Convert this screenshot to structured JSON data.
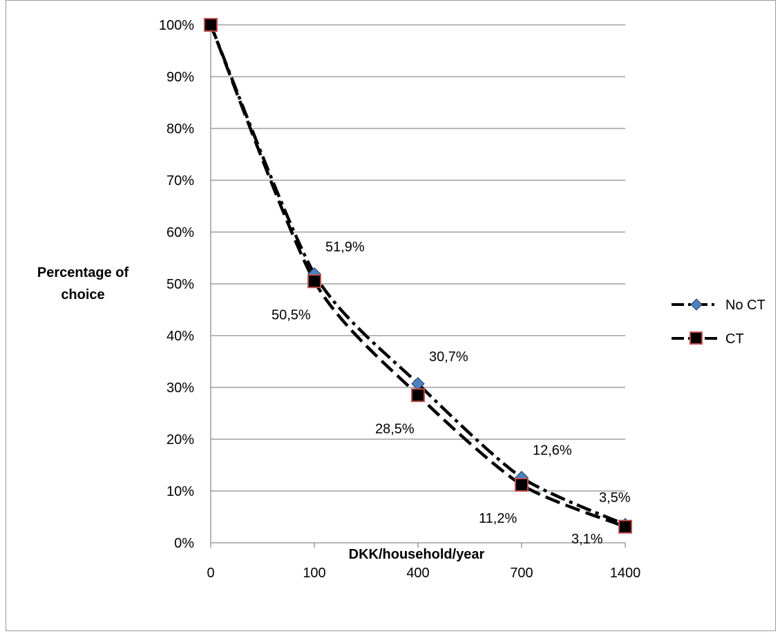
{
  "chart_data": {
    "type": "line",
    "categories": [
      "0",
      "100",
      "400",
      "700",
      "1400"
    ],
    "series": [
      {
        "name": "No CT",
        "values": [
          100,
          51.9,
          30.7,
          12.6,
          3.5
        ],
        "labels": [
          "",
          "51,9%",
          "30,7%",
          "12,6%",
          "3,5%"
        ],
        "marker": "diamond",
        "marker_fill": "#4f81bd",
        "line_style": "dash-dot"
      },
      {
        "name": "CT",
        "values": [
          100,
          50.5,
          28.5,
          11.2,
          3.1
        ],
        "labels": [
          "",
          "50,5%",
          "28,5%",
          "11,2%",
          "3,1%"
        ],
        "marker": "square",
        "marker_fill": "#000000",
        "marker_stroke": "#c0504d",
        "line_style": "dash"
      }
    ],
    "y_ticks": [
      "0%",
      "10%",
      "20%",
      "30%",
      "40%",
      "50%",
      "60%",
      "70%",
      "80%",
      "90%",
      "100%"
    ],
    "ylim": [
      0,
      100
    ],
    "ylabel_lines": [
      "Percentage of",
      "choice"
    ],
    "xlabel": "DKK/household/year",
    "grid": "horizontal",
    "legend_position": "right",
    "line_color": "#000000",
    "grid_color": "#8c8c8c"
  }
}
